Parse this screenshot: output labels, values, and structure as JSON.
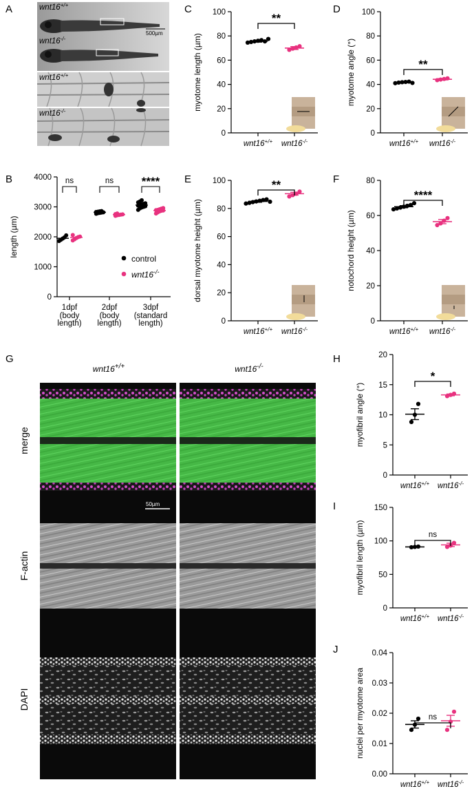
{
  "colors": {
    "control": "#000000",
    "mutant": "#e8327f",
    "green": "#3fc43f",
    "magenta": "#d24fc8"
  },
  "panel_letters": {
    "A": "A",
    "B": "B",
    "C": "C",
    "D": "D",
    "E": "E",
    "F": "F",
    "G": "G",
    "H": "H",
    "I": "I",
    "J": "J"
  },
  "panelA": {
    "wt_base": "wnt16",
    "wt_sup": "+/+",
    "mut_base": "wnt16",
    "mut_sup": "-/-",
    "scale": "500µm"
  },
  "genotypes": {
    "wt_base": "wnt16",
    "wt_sup": "+/+",
    "mut_base": "wnt16",
    "mut_sup": "-/-"
  },
  "panelG": {
    "col_wt_base": "wnt16",
    "col_wt_sup": "+/+",
    "col_mut_base": "wnt16",
    "col_mut_sup": "-/-",
    "rows": [
      "merge",
      "F-actin",
      "DAPI"
    ],
    "scale": "50µm"
  },
  "chart_data": [
    {
      "id": "B",
      "type": "scatter",
      "ylabel": "length (µm)",
      "ylim": [
        0,
        4000
      ],
      "yticks": [
        0,
        1000,
        2000,
        3000,
        4000
      ],
      "categories": [
        {
          "line1": "1dpf",
          "line2": "(body",
          "line3": "length)"
        },
        {
          "line1": "2dpf",
          "line2": "(body",
          "line3": "length)"
        },
        {
          "line1": "3dpf",
          "line2": "(standard",
          "line3": "length)"
        }
      ],
      "series": [
        {
          "name": "control",
          "color": "#000000",
          "groups": [
            {
              "mean": 1950,
              "sem": 60,
              "points": [
                1860,
                1900,
                1940,
                1980,
                2050
              ]
            },
            {
              "mean": 2820,
              "sem": 15,
              "points": [
                2770,
                2790,
                2800,
                2810,
                2820,
                2830,
                2840,
                2850,
                2860
              ]
            },
            {
              "mean": 3060,
              "sem": 25,
              "points": [
                2900,
                2950,
                2980,
                3000,
                3020,
                3040,
                3060,
                3080,
                3100,
                3120,
                3150,
                3180,
                3220
              ]
            }
          ]
        },
        {
          "name_base": "wnt16",
          "name_sup": "-/-",
          "color": "#e8327f",
          "groups": [
            {
              "mean": 1980,
              "sem": 40,
              "points": [
                1880,
                1920,
                1960,
                1990,
                2010,
                2060
              ]
            },
            {
              "mean": 2740,
              "sem": 12,
              "points": [
                2700,
                2720,
                2730,
                2740,
                2750,
                2760,
                2780
              ]
            },
            {
              "mean": 2880,
              "sem": 15,
              "points": [
                2780,
                2820,
                2850,
                2870,
                2880,
                2890,
                2900,
                2920,
                2940,
                2960
              ]
            }
          ]
        }
      ],
      "legend": [
        "control",
        "wnt16-/-"
      ],
      "annotations": [
        "ns",
        "ns",
        "****"
      ]
    },
    {
      "id": "C",
      "type": "scatter",
      "ylabel": "myotome length (µm)",
      "ylim": [
        0,
        100
      ],
      "yticks": [
        0,
        20,
        40,
        60,
        80,
        100
      ],
      "groups": [
        {
          "color": "#000000",
          "mean": 75.5,
          "sem": 0.6,
          "points": [
            74.5,
            75,
            75.5,
            76,
            76.5,
            75.5,
            77.5
          ]
        },
        {
          "color": "#e8327f",
          "mean": 70,
          "sem": 1.2,
          "points": [
            68.5,
            69.5,
            70.5,
            71.5
          ]
        }
      ],
      "annotation": "**",
      "inset": "length"
    },
    {
      "id": "D",
      "type": "scatter",
      "ylabel": "myotome angle (°)",
      "ylim": [
        0,
        100
      ],
      "yticks": [
        0,
        20,
        40,
        60,
        80,
        100
      ],
      "groups": [
        {
          "color": "#000000",
          "mean": 41.7,
          "sem": 0.4,
          "points": [
            41,
            41.5,
            41.8,
            42,
            42.3,
            41.2
          ]
        },
        {
          "color": "#e8327f",
          "mean": 44.2,
          "sem": 0.6,
          "points": [
            43.5,
            44,
            44.5,
            45
          ]
        }
      ],
      "annotation": "**",
      "inset": "angle"
    },
    {
      "id": "E",
      "type": "scatter",
      "ylabel": "dorsal myotome height (µm)",
      "ylim": [
        0,
        100
      ],
      "yticks": [
        0,
        20,
        40,
        60,
        80,
        100
      ],
      "groups": [
        {
          "color": "#000000",
          "mean": 85,
          "sem": 0.6,
          "points": [
            83.5,
            84,
            84.5,
            85,
            85.5,
            86,
            86.5,
            84.8
          ]
        },
        {
          "color": "#e8327f",
          "mean": 90.5,
          "sem": 1.0,
          "points": [
            88.5,
            89.5,
            90.5,
            92
          ]
        }
      ],
      "annotation": "**",
      "inset": "height"
    },
    {
      "id": "F",
      "type": "scatter",
      "ylabel": "notochord height (µm)",
      "ylim": [
        0,
        80
      ],
      "yticks": [
        0,
        20,
        40,
        60,
        80
      ],
      "groups": [
        {
          "color": "#000000",
          "mean": 65,
          "sem": 0.6,
          "points": [
            63.5,
            64,
            64.5,
            65,
            65.5,
            66,
            67
          ]
        },
        {
          "color": "#e8327f",
          "mean": 56.5,
          "sem": 1.2,
          "points": [
            54.5,
            55.5,
            57,
            58.5
          ]
        }
      ],
      "annotation": "****",
      "inset": "notochord"
    },
    {
      "id": "H",
      "type": "scatter",
      "ylabel": "myofibril angle (°)",
      "ylim": [
        0,
        20
      ],
      "yticks": [
        0,
        5,
        10,
        15,
        20
      ],
      "groups": [
        {
          "color": "#000000",
          "mean": 10.1,
          "sem": 0.9,
          "points": [
            8.8,
            10.0,
            11.8
          ]
        },
        {
          "color": "#e8327f",
          "mean": 13.3,
          "sem": 0.15,
          "points": [
            13.1,
            13.3,
            13.5
          ]
        }
      ],
      "annotation": "*"
    },
    {
      "id": "I",
      "type": "scatter",
      "ylabel": "myofibril length (µm)",
      "ylim": [
        0,
        150
      ],
      "yticks": [
        0,
        50,
        100,
        150
      ],
      "groups": [
        {
          "color": "#000000",
          "mean": 91,
          "sem": 0.5,
          "points": [
            90.5,
            91,
            91.5
          ]
        },
        {
          "color": "#e8327f",
          "mean": 94,
          "sem": 2.5,
          "points": [
            91,
            93,
            97
          ]
        }
      ],
      "annotation": "ns"
    },
    {
      "id": "J",
      "type": "scatter",
      "ylabel": "nuclei per myotome area",
      "ylim": [
        0,
        0.04
      ],
      "yticks": [
        0,
        0.01,
        0.02,
        0.03,
        0.04
      ],
      "ytick_labels": [
        "0.00",
        "0.01",
        "0.02",
        "0.03",
        "0.04"
      ],
      "groups": [
        {
          "color": "#000000",
          "mean": 0.0163,
          "sem": 0.0012,
          "points": [
            0.0145,
            0.0162,
            0.0182
          ]
        },
        {
          "color": "#e8327f",
          "mean": 0.0175,
          "sem": 0.0018,
          "points": [
            0.0145,
            0.0172,
            0.0205
          ]
        }
      ],
      "annotation": "ns"
    }
  ]
}
